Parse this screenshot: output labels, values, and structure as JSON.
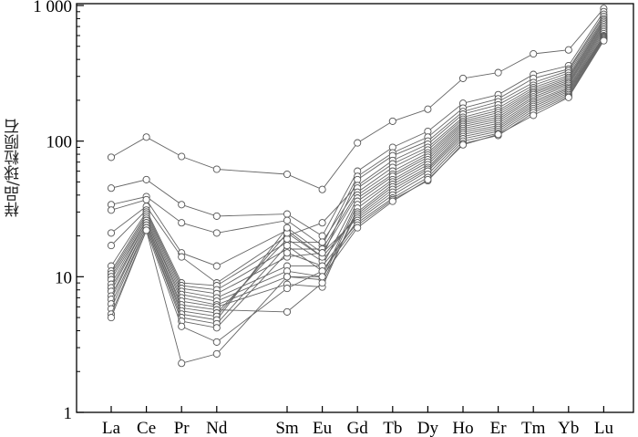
{
  "chart_data": {
    "type": "line",
    "title": "",
    "xlabel": "",
    "ylabel": "样品/球粒陨石",
    "y_scale": "log",
    "ylim": [
      1,
      1000
    ],
    "yticks": [
      {
        "value": 1,
        "label": "1"
      },
      {
        "value": 10,
        "label": "10"
      },
      {
        "value": 100,
        "label": "100"
      },
      {
        "value": 1000,
        "label": "1 000"
      }
    ],
    "categories": [
      "La",
      "Ce",
      "Pr",
      "Nd",
      "Sm",
      "Eu",
      "Gd",
      "Tb",
      "Dy",
      "Ho",
      "Er",
      "Tm",
      "Yb",
      "Lu"
    ],
    "category_positions": [
      0,
      1,
      2,
      3,
      5,
      6,
      7,
      8,
      9,
      10,
      11,
      12,
      13,
      14
    ],
    "grid": false,
    "legend": "none",
    "line_color": "#666666",
    "marker": "open-circle",
    "series": [
      {
        "values": [
          76,
          107,
          77,
          62,
          57,
          44,
          97,
          140,
          172,
          290,
          320,
          440,
          470,
          950
        ]
      },
      {
        "values": [
          45,
          52,
          34,
          28,
          29,
          20,
          60,
          90,
          118,
          190,
          220,
          310,
          360,
          900
        ]
      },
      {
        "values": [
          34,
          39,
          25,
          21,
          26,
          17,
          55,
          82,
          107,
          175,
          205,
          290,
          340,
          860
        ]
      },
      {
        "values": [
          31,
          37,
          15,
          12,
          22,
          14,
          52,
          78,
          100,
          165,
          195,
          270,
          330,
          830
        ]
      },
      {
        "values": [
          21,
          33,
          14,
          9,
          20,
          25,
          47,
          72,
          95,
          158,
          185,
          258,
          318,
          800
        ]
      },
      {
        "values": [
          17,
          31,
          9,
          8.6,
          18,
          18,
          45,
          68,
          90,
          150,
          175,
          248,
          305,
          780
        ]
      },
      {
        "values": [
          12,
          30,
          8.6,
          8,
          16,
          16,
          42,
          64,
          86,
          145,
          168,
          240,
          295,
          760
        ]
      },
      {
        "values": [
          11,
          29,
          8.2,
          7.5,
          14,
          15,
          40,
          60,
          82,
          140,
          162,
          232,
          288,
          740
        ]
      },
      {
        "values": [
          10.5,
          28,
          7.8,
          7,
          12,
          12,
          38,
          57,
          79,
          136,
          156,
          226,
          280,
          720
        ]
      },
      {
        "values": [
          10,
          27,
          7.4,
          6.6,
          11,
          10,
          36,
          55,
          76,
          132,
          150,
          220,
          272,
          700
        ]
      },
      {
        "values": [
          9.5,
          26,
          7,
          6.2,
          10,
          9.5,
          34,
          52,
          73,
          128,
          145,
          212,
          265,
          680
        ]
      },
      {
        "values": [
          8.8,
          26,
          6.6,
          6,
          8.8,
          8.4,
          32,
          50,
          70,
          124,
          140,
          205,
          258,
          660
        ]
      },
      {
        "values": [
          8.3,
          25,
          6.2,
          5.7,
          5.5,
          9,
          30,
          48,
          67,
          120,
          135,
          198,
          250,
          640
        ]
      },
      {
        "values": [
          7.8,
          25,
          5.9,
          5.4,
          19,
          13,
          29,
          46,
          64,
          116,
          130,
          192,
          244,
          620
        ]
      },
      {
        "values": [
          7.2,
          24,
          5.6,
          5.1,
          21,
          14,
          28,
          44,
          62,
          112,
          126,
          186,
          238,
          600
        ]
      },
      {
        "values": [
          6.8,
          24,
          5.3,
          4.8,
          23,
          15,
          27,
          42,
          60,
          108,
          122,
          180,
          232,
          590
        ]
      },
      {
        "values": [
          6.3,
          23,
          5,
          4.5,
          17,
          11,
          26,
          40,
          57,
          104,
          118,
          174,
          226,
          580
        ]
      },
      {
        "values": [
          5.8,
          23,
          4.7,
          4.2,
          15,
          12,
          25,
          38,
          54,
          100,
          114,
          168,
          220,
          570
        ]
      },
      {
        "values": [
          5.3,
          22,
          4.3,
          3.3,
          8.2,
          11,
          24,
          37,
          51,
          96,
          110,
          162,
          214,
          560
        ]
      },
      {
        "values": [
          5,
          22,
          2.3,
          2.7,
          10,
          10,
          23,
          36,
          52,
          94,
          112,
          155,
          210,
          550
        ]
      }
    ]
  }
}
